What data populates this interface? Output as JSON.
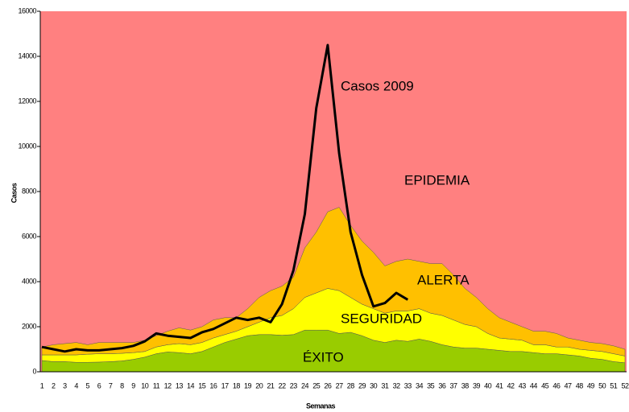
{
  "chart_data": {
    "type": "stacked_area_line",
    "xlabel": "Semanas",
    "ylabel": "Casos",
    "background": {
      "name": "EPIDEMIA",
      "color": "#ff8080"
    },
    "categories": [
      "1",
      "2",
      "3",
      "4",
      "5",
      "6",
      "7",
      "8",
      "9",
      "10",
      "11",
      "12",
      "13",
      "14",
      "15",
      "16",
      "17",
      "18",
      "19",
      "20",
      "21",
      "22",
      "23",
      "24",
      "25",
      "26",
      "27",
      "28",
      "29",
      "30",
      "31",
      "32",
      "33",
      "34",
      "35",
      "36",
      "37",
      "38",
      "39",
      "40",
      "41",
      "42",
      "43",
      "44",
      "45",
      "46",
      "47",
      "48",
      "49",
      "50",
      "51",
      "52"
    ],
    "ylim": [
      0,
      16000
    ],
    "yticks": [
      0,
      2000,
      4000,
      6000,
      8000,
      10000,
      12000,
      14000,
      16000
    ],
    "series": [
      {
        "name": "ÉXITO",
        "color": "#99cc00",
        "stack": true,
        "values": [
          500,
          450,
          450,
          420,
          420,
          430,
          450,
          480,
          550,
          650,
          800,
          880,
          850,
          800,
          900,
          1100,
          1300,
          1450,
          1600,
          1650,
          1650,
          1620,
          1650,
          1850,
          1850,
          1850,
          1700,
          1750,
          1600,
          1400,
          1300,
          1400,
          1350,
          1450,
          1350,
          1200,
          1100,
          1050,
          1050,
          1000,
          950,
          900,
          900,
          850,
          800,
          800,
          750,
          700,
          600,
          550,
          450,
          400
        ]
      },
      {
        "name": "SEGURIDAD",
        "color": "#ffff00",
        "stack": true,
        "values": [
          250,
          300,
          300,
          330,
          360,
          370,
          350,
          340,
          300,
          250,
          300,
          320,
          400,
          400,
          400,
          400,
          350,
          350,
          400,
          550,
          750,
          880,
          1150,
          1450,
          1650,
          1850,
          1900,
          1550,
          1400,
          1400,
          1300,
          1300,
          1350,
          1350,
          1250,
          1300,
          1200,
          1050,
          950,
          700,
          550,
          550,
          500,
          350,
          400,
          300,
          350,
          300,
          350,
          350,
          350,
          300
        ]
      },
      {
        "name": "ALERTA",
        "color": "#ffc000",
        "stack": true,
        "values": [
          350,
          450,
          500,
          550,
          420,
          500,
          500,
          480,
          450,
          500,
          500,
          600,
          700,
          650,
          700,
          800,
          750,
          600,
          800,
          1100,
          1200,
          1300,
          1400,
          2200,
          2700,
          3400,
          3700,
          3200,
          2800,
          2500,
          2100,
          2200,
          2300,
          2100,
          2200,
          2300,
          2000,
          1600,
          1300,
          1100,
          900,
          750,
          600,
          600,
          600,
          600,
          400,
          400,
          350,
          350,
          350,
          300
        ]
      },
      {
        "name": "Casos 2009",
        "color": "#000000",
        "stack": false,
        "values": [
          1100,
          1000,
          900,
          1000,
          950,
          950,
          1000,
          1050,
          1150,
          1350,
          1700,
          1600,
          1550,
          1500,
          1750,
          1900,
          2150,
          2400,
          2300,
          2400,
          2200,
          3000,
          4500,
          7000,
          11700,
          14500,
          9700,
          6200,
          4300,
          2900,
          3050,
          3500,
          3200,
          null,
          null,
          null,
          null,
          null,
          null,
          null,
          null,
          null,
          null,
          null,
          null,
          null,
          null,
          null,
          null,
          null,
          null,
          null
        ]
      }
    ]
  }
}
